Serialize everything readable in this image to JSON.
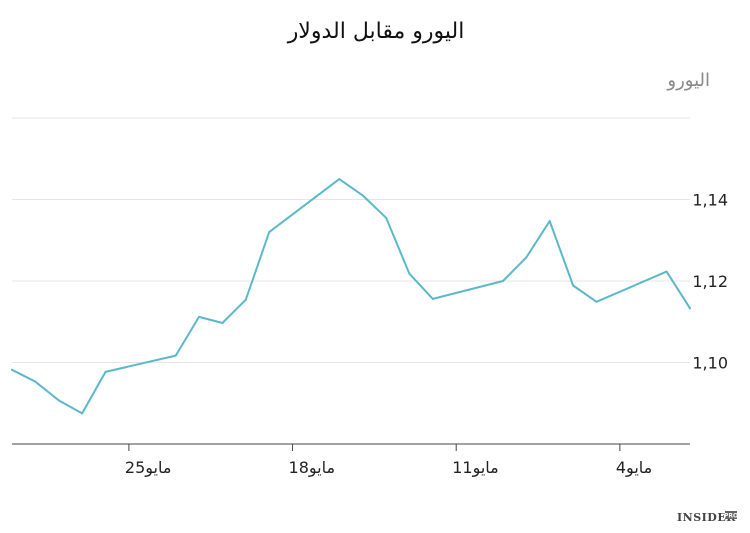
{
  "chart_data": {
    "type": "line",
    "title": "اليورو مقابل الدولار",
    "ylabel": "اليورو",
    "xlabel": "",
    "ylim": [
      1.08,
      1.16
    ],
    "yticks": [
      "1,10",
      "1,12",
      "1,14"
    ],
    "ytick_values": [
      1.1,
      1.12,
      1.14
    ],
    "x_domain": [
      "2019-05-30",
      "2019-05-01"
    ],
    "xticks": [
      {
        "label": "مايو25",
        "date": "2019-05-25"
      },
      {
        "label": "مايو18",
        "date": "2019-05-18"
      },
      {
        "label": "مايو11",
        "date": "2019-05-11"
      },
      {
        "label": "مايو4",
        "date": "2019-05-04"
      }
    ],
    "grid": true,
    "series": [
      {
        "color": "#5ab9c9",
        "points": [
          {
            "x": "2019-05-30",
            "y": 1.0982
          },
          {
            "x": "2019-05-29",
            "y": 1.0953
          },
          {
            "x": "2019-05-28",
            "y": 1.0907
          },
          {
            "x": "2019-05-27",
            "y": 1.0875
          },
          {
            "x": "2019-05-26",
            "y": 1.0977
          },
          {
            "x": "2019-05-23",
            "y": 1.1017
          },
          {
            "x": "2019-05-22",
            "y": 1.1112
          },
          {
            "x": "2019-05-21",
            "y": 1.1097
          },
          {
            "x": "2019-05-20",
            "y": 1.1154
          },
          {
            "x": "2019-05-19",
            "y": 1.132
          },
          {
            "x": "2019-05-16",
            "y": 1.145
          },
          {
            "x": "2019-05-15",
            "y": 1.141
          },
          {
            "x": "2019-05-14",
            "y": 1.1355
          },
          {
            "x": "2019-05-13",
            "y": 1.1218
          },
          {
            "x": "2019-05-12",
            "y": 1.1156
          },
          {
            "x": "2019-05-09",
            "y": 1.12
          },
          {
            "x": "2019-05-08",
            "y": 1.1258
          },
          {
            "x": "2019-05-07",
            "y": 1.1347
          },
          {
            "x": "2019-05-06",
            "y": 1.1189
          },
          {
            "x": "2019-05-05",
            "y": 1.1149
          },
          {
            "x": "2019-05-02",
            "y": 1.1223
          },
          {
            "x": "2019-05-01",
            "y": 1.1133
          }
        ]
      }
    ]
  },
  "branding": {
    "name": "INSIDER",
    "sup": "PRO"
  }
}
